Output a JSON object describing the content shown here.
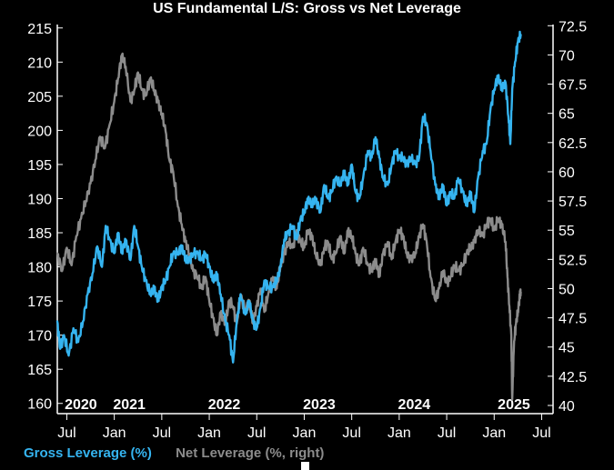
{
  "chart_data": {
    "type": "line",
    "title": "US Fundamental L/S: Gross vs Net Leverage",
    "left_axis": {
      "range": [
        158.5,
        215.5
      ],
      "ticks": [
        160,
        165,
        170,
        175,
        180,
        185,
        190,
        195,
        200,
        205,
        210,
        215
      ],
      "tick_labels": [
        "160",
        "165",
        "170",
        "175",
        "180",
        "185",
        "190",
        "195",
        "200",
        "205",
        "210",
        "215"
      ]
    },
    "right_axis": {
      "range": [
        39.3,
        72.6
      ],
      "ticks": [
        40,
        42.5,
        45,
        47.5,
        50,
        52.5,
        55,
        57.5,
        60,
        62.5,
        65,
        67.5,
        70,
        72.5
      ],
      "tick_labels": [
        "40",
        "42.5",
        "45",
        "47.5",
        "50",
        "52.5",
        "55",
        "57.5",
        "60",
        "62.5",
        "65",
        "67.5",
        "70",
        "72.5"
      ]
    },
    "x_axis": {
      "range": [
        2020.4,
        2025.62
      ],
      "month_ticks": [
        {
          "label": "Jul",
          "x": 2020.5
        },
        {
          "label": "Jan",
          "x": 2021.0
        },
        {
          "label": "Jul",
          "x": 2021.5
        },
        {
          "label": "Jan",
          "x": 2022.0
        },
        {
          "label": "Jul",
          "x": 2022.5
        },
        {
          "label": "Jan",
          "x": 2023.0
        },
        {
          "label": "Jul",
          "x": 2023.5
        },
        {
          "label": "Jan",
          "x": 2024.0
        },
        {
          "label": "Jul",
          "x": 2024.5
        },
        {
          "label": "Jan",
          "x": 2025.0
        },
        {
          "label": "Jul",
          "x": 2025.5
        }
      ],
      "year_labels": [
        {
          "label": "2020",
          "x": 2020.42
        },
        {
          "label": "2021",
          "x": 2020.93
        },
        {
          "label": "2022",
          "x": 2021.93
        },
        {
          "label": "2023",
          "x": 2022.93
        },
        {
          "label": "2024",
          "x": 2023.93
        },
        {
          "label": "2025",
          "x": 2024.98
        }
      ]
    },
    "series": [
      {
        "name": "Gross Leverage (%)",
        "axis": "left",
        "color": "#35b4f0",
        "points": [
          [
            2020.4,
            172
          ],
          [
            2020.43,
            168
          ],
          [
            2020.47,
            170
          ],
          [
            2020.52,
            167
          ],
          [
            2020.57,
            171
          ],
          [
            2020.62,
            169
          ],
          [
            2020.67,
            172
          ],
          [
            2020.72,
            176
          ],
          [
            2020.77,
            179
          ],
          [
            2020.82,
            183
          ],
          [
            2020.87,
            180
          ],
          [
            2020.91,
            186
          ],
          [
            2020.95,
            184
          ],
          [
            2021.0,
            182
          ],
          [
            2021.04,
            185
          ],
          [
            2021.08,
            182
          ],
          [
            2021.12,
            184
          ],
          [
            2021.17,
            181
          ],
          [
            2021.21,
            186
          ],
          [
            2021.25,
            183
          ],
          [
            2021.29,
            180
          ],
          [
            2021.33,
            178
          ],
          [
            2021.38,
            176
          ],
          [
            2021.42,
            177
          ],
          [
            2021.46,
            175
          ],
          [
            2021.5,
            177
          ],
          [
            2021.54,
            178
          ],
          [
            2021.58,
            180
          ],
          [
            2021.62,
            182
          ],
          [
            2021.67,
            182
          ],
          [
            2021.71,
            183
          ],
          [
            2021.75,
            181
          ],
          [
            2021.79,
            181
          ],
          [
            2021.83,
            182
          ],
          [
            2021.88,
            182
          ],
          [
            2021.92,
            181
          ],
          [
            2021.96,
            182
          ],
          [
            2022.0,
            180
          ],
          [
            2022.04,
            178
          ],
          [
            2022.08,
            179
          ],
          [
            2022.12,
            176
          ],
          [
            2022.17,
            172
          ],
          [
            2022.21,
            170
          ],
          [
            2022.25,
            166
          ],
          [
            2022.29,
            172
          ],
          [
            2022.33,
            176
          ],
          [
            2022.38,
            173
          ],
          [
            2022.42,
            175
          ],
          [
            2022.46,
            172
          ],
          [
            2022.5,
            171
          ],
          [
            2022.54,
            174
          ],
          [
            2022.58,
            178
          ],
          [
            2022.62,
            177
          ],
          [
            2022.67,
            177
          ],
          [
            2022.71,
            178
          ],
          [
            2022.75,
            180
          ],
          [
            2022.79,
            184
          ],
          [
            2022.83,
            185
          ],
          [
            2022.88,
            186
          ],
          [
            2022.92,
            184
          ],
          [
            2022.96,
            187
          ],
          [
            2023.0,
            188
          ],
          [
            2023.04,
            190
          ],
          [
            2023.08,
            189
          ],
          [
            2023.12,
            190
          ],
          [
            2023.17,
            188
          ],
          [
            2023.21,
            192
          ],
          [
            2023.25,
            190
          ],
          [
            2023.29,
            191
          ],
          [
            2023.33,
            193
          ],
          [
            2023.38,
            192
          ],
          [
            2023.42,
            194
          ],
          [
            2023.46,
            192
          ],
          [
            2023.5,
            195
          ],
          [
            2023.54,
            191
          ],
          [
            2023.58,
            190
          ],
          [
            2023.62,
            193
          ],
          [
            2023.67,
            197
          ],
          [
            2023.71,
            196
          ],
          [
            2023.75,
            199
          ],
          [
            2023.79,
            196
          ],
          [
            2023.83,
            193
          ],
          [
            2023.88,
            192
          ],
          [
            2023.92,
            195
          ],
          [
            2023.96,
            197
          ],
          [
            2024.0,
            196
          ],
          [
            2024.04,
            196
          ],
          [
            2024.08,
            195
          ],
          [
            2024.12,
            196
          ],
          [
            2024.17,
            195
          ],
          [
            2024.21,
            196
          ],
          [
            2024.25,
            202
          ],
          [
            2024.29,
            201
          ],
          [
            2024.33,
            197
          ],
          [
            2024.38,
            192
          ],
          [
            2024.42,
            190
          ],
          [
            2024.46,
            192
          ],
          [
            2024.5,
            189
          ],
          [
            2024.54,
            191
          ],
          [
            2024.58,
            190
          ],
          [
            2024.62,
            193
          ],
          [
            2024.67,
            191
          ],
          [
            2024.71,
            189
          ],
          [
            2024.75,
            191
          ],
          [
            2024.79,
            188
          ],
          [
            2024.83,
            193
          ],
          [
            2024.88,
            197
          ],
          [
            2024.92,
            198
          ],
          [
            2024.96,
            203
          ],
          [
            2025.0,
            206
          ],
          [
            2025.04,
            208
          ],
          [
            2025.08,
            206
          ],
          [
            2025.12,
            207
          ],
          [
            2025.15,
            202
          ],
          [
            2025.17,
            198
          ],
          [
            2025.19,
            206
          ],
          [
            2025.22,
            210
          ],
          [
            2025.25,
            213
          ],
          [
            2025.28,
            214
          ]
        ]
      },
      {
        "name": "Net Leverage (%, right)",
        "axis": "right",
        "color": "#8c8c8c",
        "points": [
          [
            2020.4,
            53
          ],
          [
            2020.45,
            51.5
          ],
          [
            2020.5,
            53.5
          ],
          [
            2020.55,
            52
          ],
          [
            2020.6,
            54.5
          ],
          [
            2020.65,
            56
          ],
          [
            2020.7,
            57.5
          ],
          [
            2020.75,
            59
          ],
          [
            2020.8,
            61
          ],
          [
            2020.85,
            63
          ],
          [
            2020.9,
            62
          ],
          [
            2020.95,
            64
          ],
          [
            2021.0,
            66
          ],
          [
            2021.04,
            68
          ],
          [
            2021.08,
            70
          ],
          [
            2021.12,
            69
          ],
          [
            2021.17,
            66
          ],
          [
            2021.21,
            67
          ],
          [
            2021.25,
            68.5
          ],
          [
            2021.29,
            67
          ],
          [
            2021.33,
            66.5
          ],
          [
            2021.38,
            68
          ],
          [
            2021.42,
            67
          ],
          [
            2021.46,
            66
          ],
          [
            2021.5,
            65
          ],
          [
            2021.54,
            63.5
          ],
          [
            2021.58,
            61
          ],
          [
            2021.62,
            60
          ],
          [
            2021.67,
            57
          ],
          [
            2021.71,
            55.5
          ],
          [
            2021.75,
            54
          ],
          [
            2021.79,
            53
          ],
          [
            2021.83,
            51.5
          ],
          [
            2021.88,
            51
          ],
          [
            2021.92,
            50
          ],
          [
            2021.96,
            51
          ],
          [
            2022.0,
            49
          ],
          [
            2022.04,
            47.5
          ],
          [
            2022.08,
            46
          ],
          [
            2022.12,
            48
          ],
          [
            2022.17,
            47
          ],
          [
            2022.21,
            49
          ],
          [
            2022.25,
            48.5
          ],
          [
            2022.29,
            47
          ],
          [
            2022.33,
            49.5
          ],
          [
            2022.38,
            48
          ],
          [
            2022.42,
            49
          ],
          [
            2022.46,
            47
          ],
          [
            2022.5,
            48.5
          ],
          [
            2022.54,
            50
          ],
          [
            2022.58,
            48
          ],
          [
            2022.62,
            49.5
          ],
          [
            2022.67,
            51
          ],
          [
            2022.71,
            50
          ],
          [
            2022.75,
            52
          ],
          [
            2022.79,
            53
          ],
          [
            2022.83,
            54
          ],
          [
            2022.88,
            53.5
          ],
          [
            2022.92,
            55
          ],
          [
            2022.96,
            54
          ],
          [
            2023.0,
            53.5
          ],
          [
            2023.04,
            55
          ],
          [
            2023.08,
            54.5
          ],
          [
            2023.12,
            53
          ],
          [
            2023.17,
            52
          ],
          [
            2023.21,
            53.5
          ],
          [
            2023.25,
            54
          ],
          [
            2023.29,
            52.5
          ],
          [
            2023.33,
            53
          ],
          [
            2023.38,
            54.5
          ],
          [
            2023.42,
            53
          ],
          [
            2023.46,
            55
          ],
          [
            2023.5,
            54.5
          ],
          [
            2023.54,
            53
          ],
          [
            2023.58,
            52
          ],
          [
            2023.62,
            53.5
          ],
          [
            2023.67,
            52
          ],
          [
            2023.71,
            51.5
          ],
          [
            2023.75,
            52.5
          ],
          [
            2023.79,
            51
          ],
          [
            2023.83,
            53
          ],
          [
            2023.88,
            54
          ],
          [
            2023.92,
            52.5
          ],
          [
            2023.96,
            54
          ],
          [
            2024.0,
            55
          ],
          [
            2024.04,
            54.5
          ],
          [
            2024.08,
            53
          ],
          [
            2024.12,
            52.5
          ],
          [
            2024.17,
            53
          ],
          [
            2024.21,
            54.5
          ],
          [
            2024.25,
            55.5
          ],
          [
            2024.29,
            54
          ],
          [
            2024.33,
            51
          ],
          [
            2024.38,
            49
          ],
          [
            2024.42,
            50
          ],
          [
            2024.46,
            51.5
          ],
          [
            2024.5,
            50.5
          ],
          [
            2024.54,
            51
          ],
          [
            2024.58,
            52
          ],
          [
            2024.62,
            51.5
          ],
          [
            2024.67,
            52
          ],
          [
            2024.71,
            53
          ],
          [
            2024.75,
            53.5
          ],
          [
            2024.79,
            54
          ],
          [
            2024.83,
            55
          ],
          [
            2024.88,
            54.5
          ],
          [
            2024.92,
            55.5
          ],
          [
            2024.96,
            56
          ],
          [
            2025.0,
            55
          ],
          [
            2025.04,
            56
          ],
          [
            2025.08,
            55.5
          ],
          [
            2025.12,
            54
          ],
          [
            2025.14,
            51
          ],
          [
            2025.16,
            48.5
          ],
          [
            2025.18,
            46
          ],
          [
            2025.19,
            40.5
          ],
          [
            2025.21,
            45.5
          ],
          [
            2025.23,
            47
          ],
          [
            2025.25,
            48
          ],
          [
            2025.27,
            49.5
          ],
          [
            2025.28,
            49.7
          ]
        ]
      }
    ]
  }
}
